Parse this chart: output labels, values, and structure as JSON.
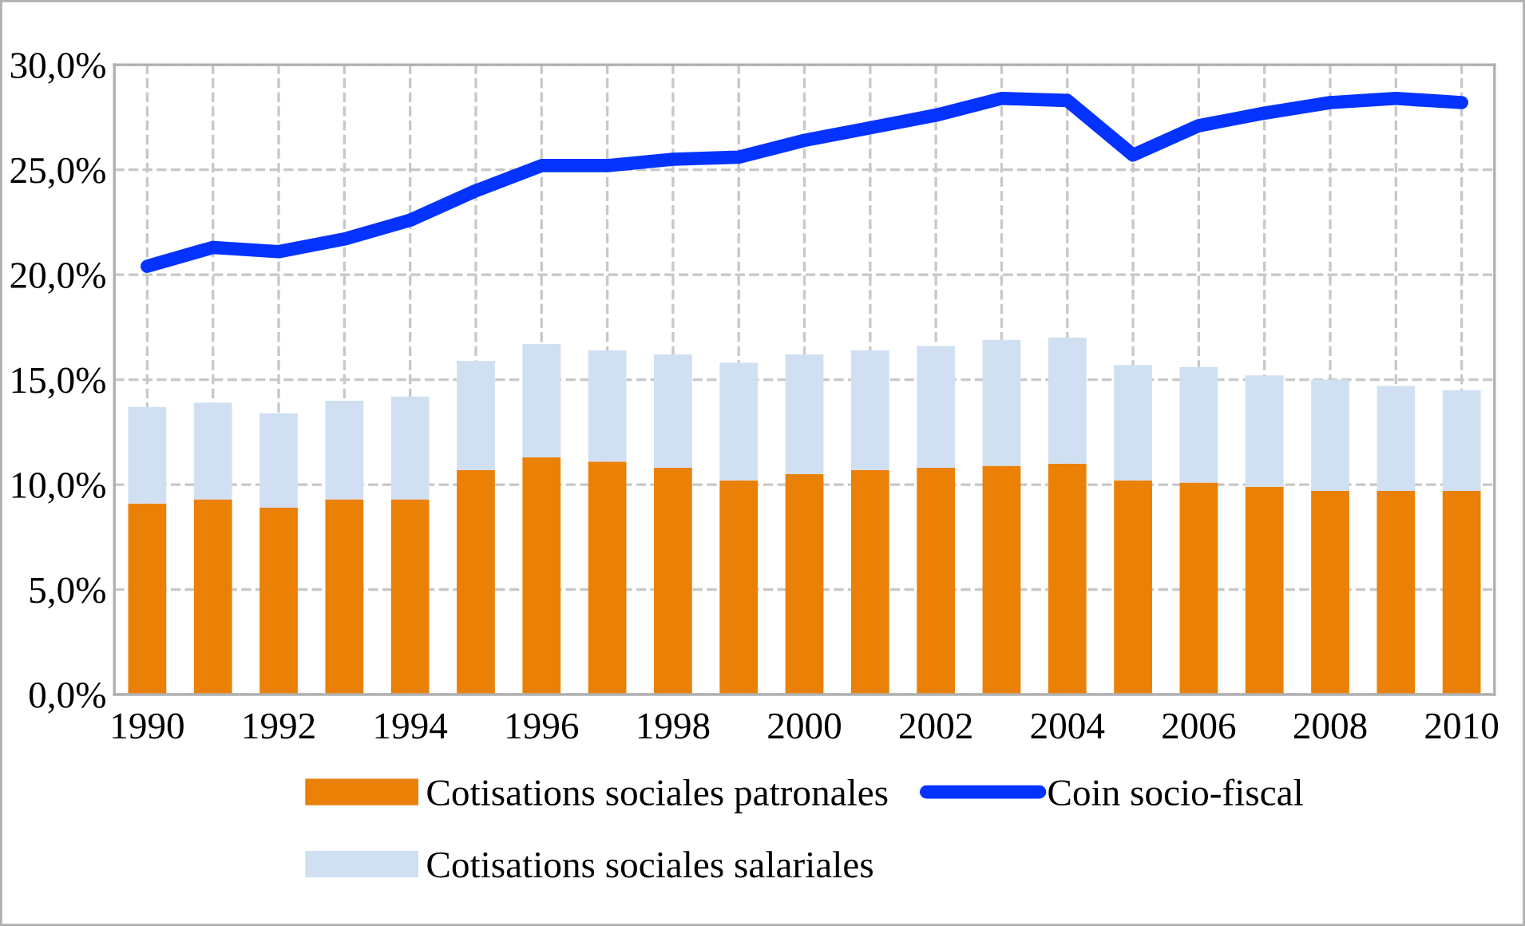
{
  "chart_data": {
    "type": "bar",
    "stacked": true,
    "categories": [
      "1990",
      null,
      "1992",
      null,
      "1994",
      null,
      "1996",
      null,
      "1998",
      null,
      "2000",
      null,
      "2002",
      null,
      "2004",
      null,
      "2006",
      null,
      "2008",
      null,
      "2010"
    ],
    "series": [
      {
        "name": "Cotisations sociales patronales",
        "color": "#ea8006",
        "values": [
          9.1,
          9.3,
          8.9,
          9.3,
          9.3,
          10.7,
          11.3,
          11.1,
          10.8,
          10.2,
          10.5,
          10.7,
          10.8,
          10.9,
          11.0,
          10.2,
          10.1,
          9.9,
          9.7,
          9.7,
          9.7
        ]
      },
      {
        "name": "Cotisations sociales salariales",
        "color": "#d0e0f2",
        "values": [
          4.6,
          4.6,
          4.5,
          4.7,
          4.9,
          5.2,
          5.4,
          5.3,
          5.4,
          5.6,
          5.7,
          5.7,
          5.8,
          6.0,
          6.0,
          5.5,
          5.5,
          5.3,
          5.3,
          5.0,
          4.8
        ]
      },
      {
        "name": "Coin socio-fiscal",
        "type": "line",
        "color": "#0433ff",
        "values": [
          20.4,
          21.3,
          21.1,
          21.7,
          22.6,
          24.0,
          25.2,
          25.2,
          25.5,
          25.6,
          26.4,
          27.0,
          27.6,
          28.4,
          28.3,
          25.7,
          27.1,
          27.7,
          28.2,
          28.4,
          28.2
        ]
      }
    ],
    "ylim": [
      0,
      30
    ],
    "yticks": [
      {
        "value": 0,
        "label": "0,0%"
      },
      {
        "value": 5,
        "label": "5,0%"
      },
      {
        "value": 10,
        "label": "10,0%"
      },
      {
        "value": 15,
        "label": "15,0%"
      },
      {
        "value": 20,
        "label": "20,0%"
      },
      {
        "value": 25,
        "label": "25,0%"
      },
      {
        "value": 30,
        "label": "30,0%"
      }
    ],
    "grid": true,
    "legend": "bottom",
    "line_style": "solid"
  }
}
